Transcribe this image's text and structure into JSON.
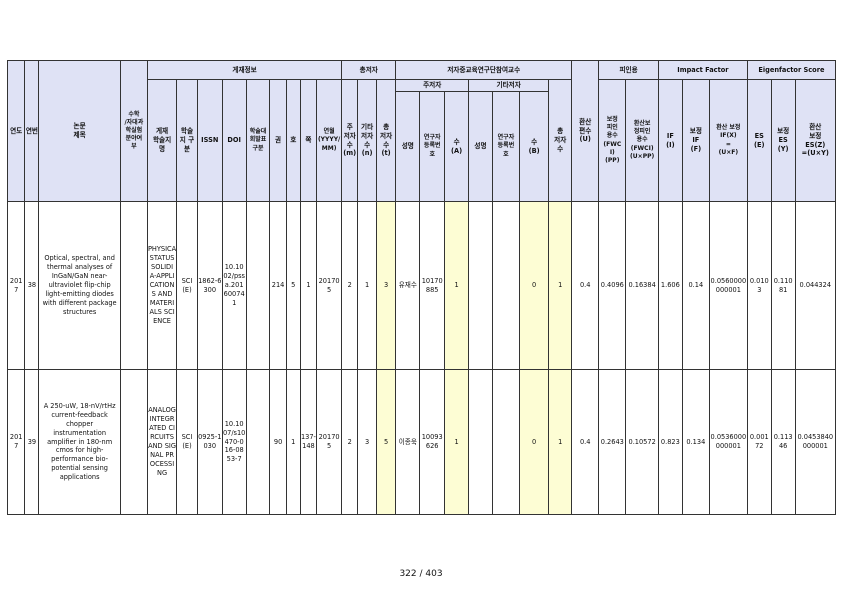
{
  "header": {
    "year": "연도",
    "seq": "연번",
    "title": "논문\n제목",
    "type": "수학\n/자대과\n학실험\n분야여\n부",
    "pub_group": "게재정보",
    "journal": "게재\n학술지\n명",
    "category": "학술\n지 구\n분",
    "issn": "ISSN",
    "doi": "DOI",
    "kci": "학술대\n회발표\n구분",
    "volume": "권",
    "issue": "호",
    "page": "쪽",
    "date": "연월\n(YYYY/\nMM)",
    "authors_group": "총저자",
    "main_authors": "주\n저자\n수\n(m)",
    "other_authors": "기타\n저자\n수\n(n)",
    "total_authors": "총\n저자\n수\n(t)",
    "prof_group": "저자중교육연구단참여교수",
    "main_author_group": "주저자",
    "other_author_group": "기타저자",
    "name1": "성명",
    "reg1": "연구자\n등록번\n호",
    "cnt_a": "수\n(A)",
    "name2": "성명",
    "reg2": "연구자\n등록번\n호",
    "cnt_b": "수\n(B)",
    "total_prof": "총\n저자\n수",
    "conv_score": "환산\n편수\n(U)",
    "citation_group": "피인용",
    "fwci": "보정\n피인\n용수\n(FWC\nI)\n(PP)",
    "fwci_conv": "환산보\n정피인\n용수\n(FWCI)\n(U×PP)",
    "if_group": "Impact Factor",
    "if": "IF\n(I)",
    "if_adj": "보정\nIF\n(F)",
    "if_conv": "환산 보정\nIF(X)\n=\n(U×F)",
    "es_group": "Eigenfactor Score",
    "es": "ES\n(E)",
    "es_adj": "보정\nES\n(Y)",
    "es_conv": "환산\n보정\nES(Z)\n=(U×Y)"
  },
  "rows": [
    {
      "year": "2017",
      "seq": "38",
      "title": "Optical, spectral, and thermal analyses of InGaN/GaN near-ultraviolet flip-chip light-emitting diodes with different package structures",
      "type": "",
      "journal": "PHYSICA STATUS SOLIDI A-APPLICATIONS AND MATERIALS SCIENCE",
      "category": "SCI(E)",
      "issn": "1862-6300",
      "doi": "10.1002/pssa.201600741",
      "kci": "",
      "volume": "214",
      "issue": "5",
      "page": "1",
      "date": "201705",
      "m": "2",
      "n": "1",
      "t": "3",
      "name1": "유재수",
      "reg1": "10170885",
      "a": "1",
      "name2": "",
      "reg2": "",
      "b": "0",
      "total": "1",
      "u": "0.4",
      "pp": "0.4096",
      "upp": "0.16384",
      "i": "1.606",
      "f": "0.14",
      "x": "0.0560000000001",
      "e": "0.0103",
      "y": "0.11081",
      "z": "0.044324"
    },
    {
      "year": "2017",
      "seq": "39",
      "title": "A 250-uW, 18-nV/rtHz current-feedback chopper instrumentation amplifier in 180-nm cmos for high-performance bio-potential sensing applications",
      "type": "",
      "journal": "ANALOG INTEGRATED CIRCUITS AND SIGNAL PROCESSING",
      "category": "SCI(E)",
      "issn": "0925-1030",
      "doi": "10.1007/s10470-016-0853-7",
      "kci": "",
      "volume": "90",
      "issue": "1",
      "page": "137-148",
      "date": "201705",
      "m": "2",
      "n": "3",
      "t": "5",
      "name1": "이종욱",
      "reg1": "10093626",
      "a": "1",
      "name2": "",
      "reg2": "",
      "b": "0",
      "total": "1",
      "u": "0.4",
      "pp": "0.2643",
      "upp": "0.10572",
      "i": "0.823",
      "f": "0.134",
      "x": "0.0536000000001",
      "e": "0.00172",
      "y": "0.11346",
      "z": "0.0453840000001"
    }
  ],
  "footer": {
    "page": "322 / 403"
  }
}
